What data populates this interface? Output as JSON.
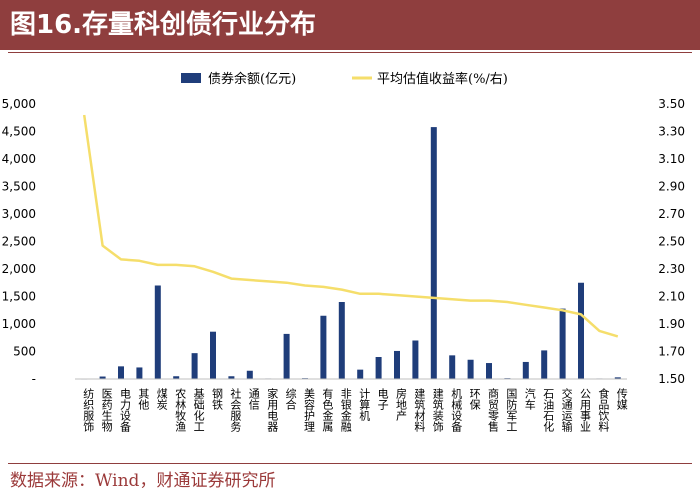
{
  "header": {
    "title": "图16.存量科创债行业分布"
  },
  "footer": {
    "source": "数据来源：Wind，财通证券研究所"
  },
  "colors": {
    "title_bg": "#8f3e3e",
    "bar": "#1f3d7a",
    "line": "#f5de6b",
    "source_text": "#9b3a3a"
  },
  "chart_data": {
    "type": "bar",
    "secondary_type": "line",
    "categories": [
      "纺织服饰",
      "医药生物",
      "电力设备",
      "其他",
      "煤炭",
      "农林牧渔",
      "基础化工",
      "钢铁",
      "社会服务",
      "通信",
      "家用电器",
      "综合",
      "美容护理",
      "有色金属",
      "非银金融",
      "计算机",
      "电子",
      "房地产",
      "建筑材料",
      "建筑装饰",
      "机械设备",
      "环保",
      "商贸零售",
      "国防军工",
      "汽车",
      "石油石化",
      "交通运输",
      "公用事业",
      "食品饮料",
      "传媒"
    ],
    "series": [
      {
        "name": "债券余额(亿元)",
        "axis": "left",
        "values": [
          5,
          45,
          230,
          210,
          1700,
          50,
          470,
          860,
          50,
          150,
          10,
          820,
          15,
          1150,
          1400,
          170,
          400,
          510,
          700,
          4580,
          430,
          350,
          290,
          15,
          310,
          520,
          1280,
          1750,
          10,
          30
        ]
      },
      {
        "name": "平均估值收益率(%/右)",
        "axis": "right",
        "values": [
          3.42,
          2.47,
          2.37,
          2.36,
          2.33,
          2.33,
          2.32,
          2.28,
          2.23,
          2.22,
          2.21,
          2.2,
          2.18,
          2.17,
          2.15,
          2.12,
          2.12,
          2.11,
          2.1,
          2.09,
          2.08,
          2.07,
          2.07,
          2.06,
          2.04,
          2.02,
          2.0,
          1.97,
          1.85,
          1.81
        ]
      }
    ],
    "y_left": {
      "ylim": [
        0,
        5000
      ],
      "ticks": [
        "-",
        "500",
        "1,000",
        "1,500",
        "2,000",
        "2,500",
        "3,000",
        "3,500",
        "4,000",
        "4,500",
        "5,000"
      ]
    },
    "y_right": {
      "ylim": [
        1.5,
        3.5
      ],
      "ticks": [
        "1.50",
        "1.70",
        "1.90",
        "2.10",
        "2.30",
        "2.50",
        "2.70",
        "2.90",
        "3.10",
        "3.30",
        "3.50"
      ]
    },
    "legend": {
      "position": "top",
      "items": [
        "债券余额(亿元)",
        "平均估值收益率(%/右)"
      ]
    },
    "grid": false
  }
}
